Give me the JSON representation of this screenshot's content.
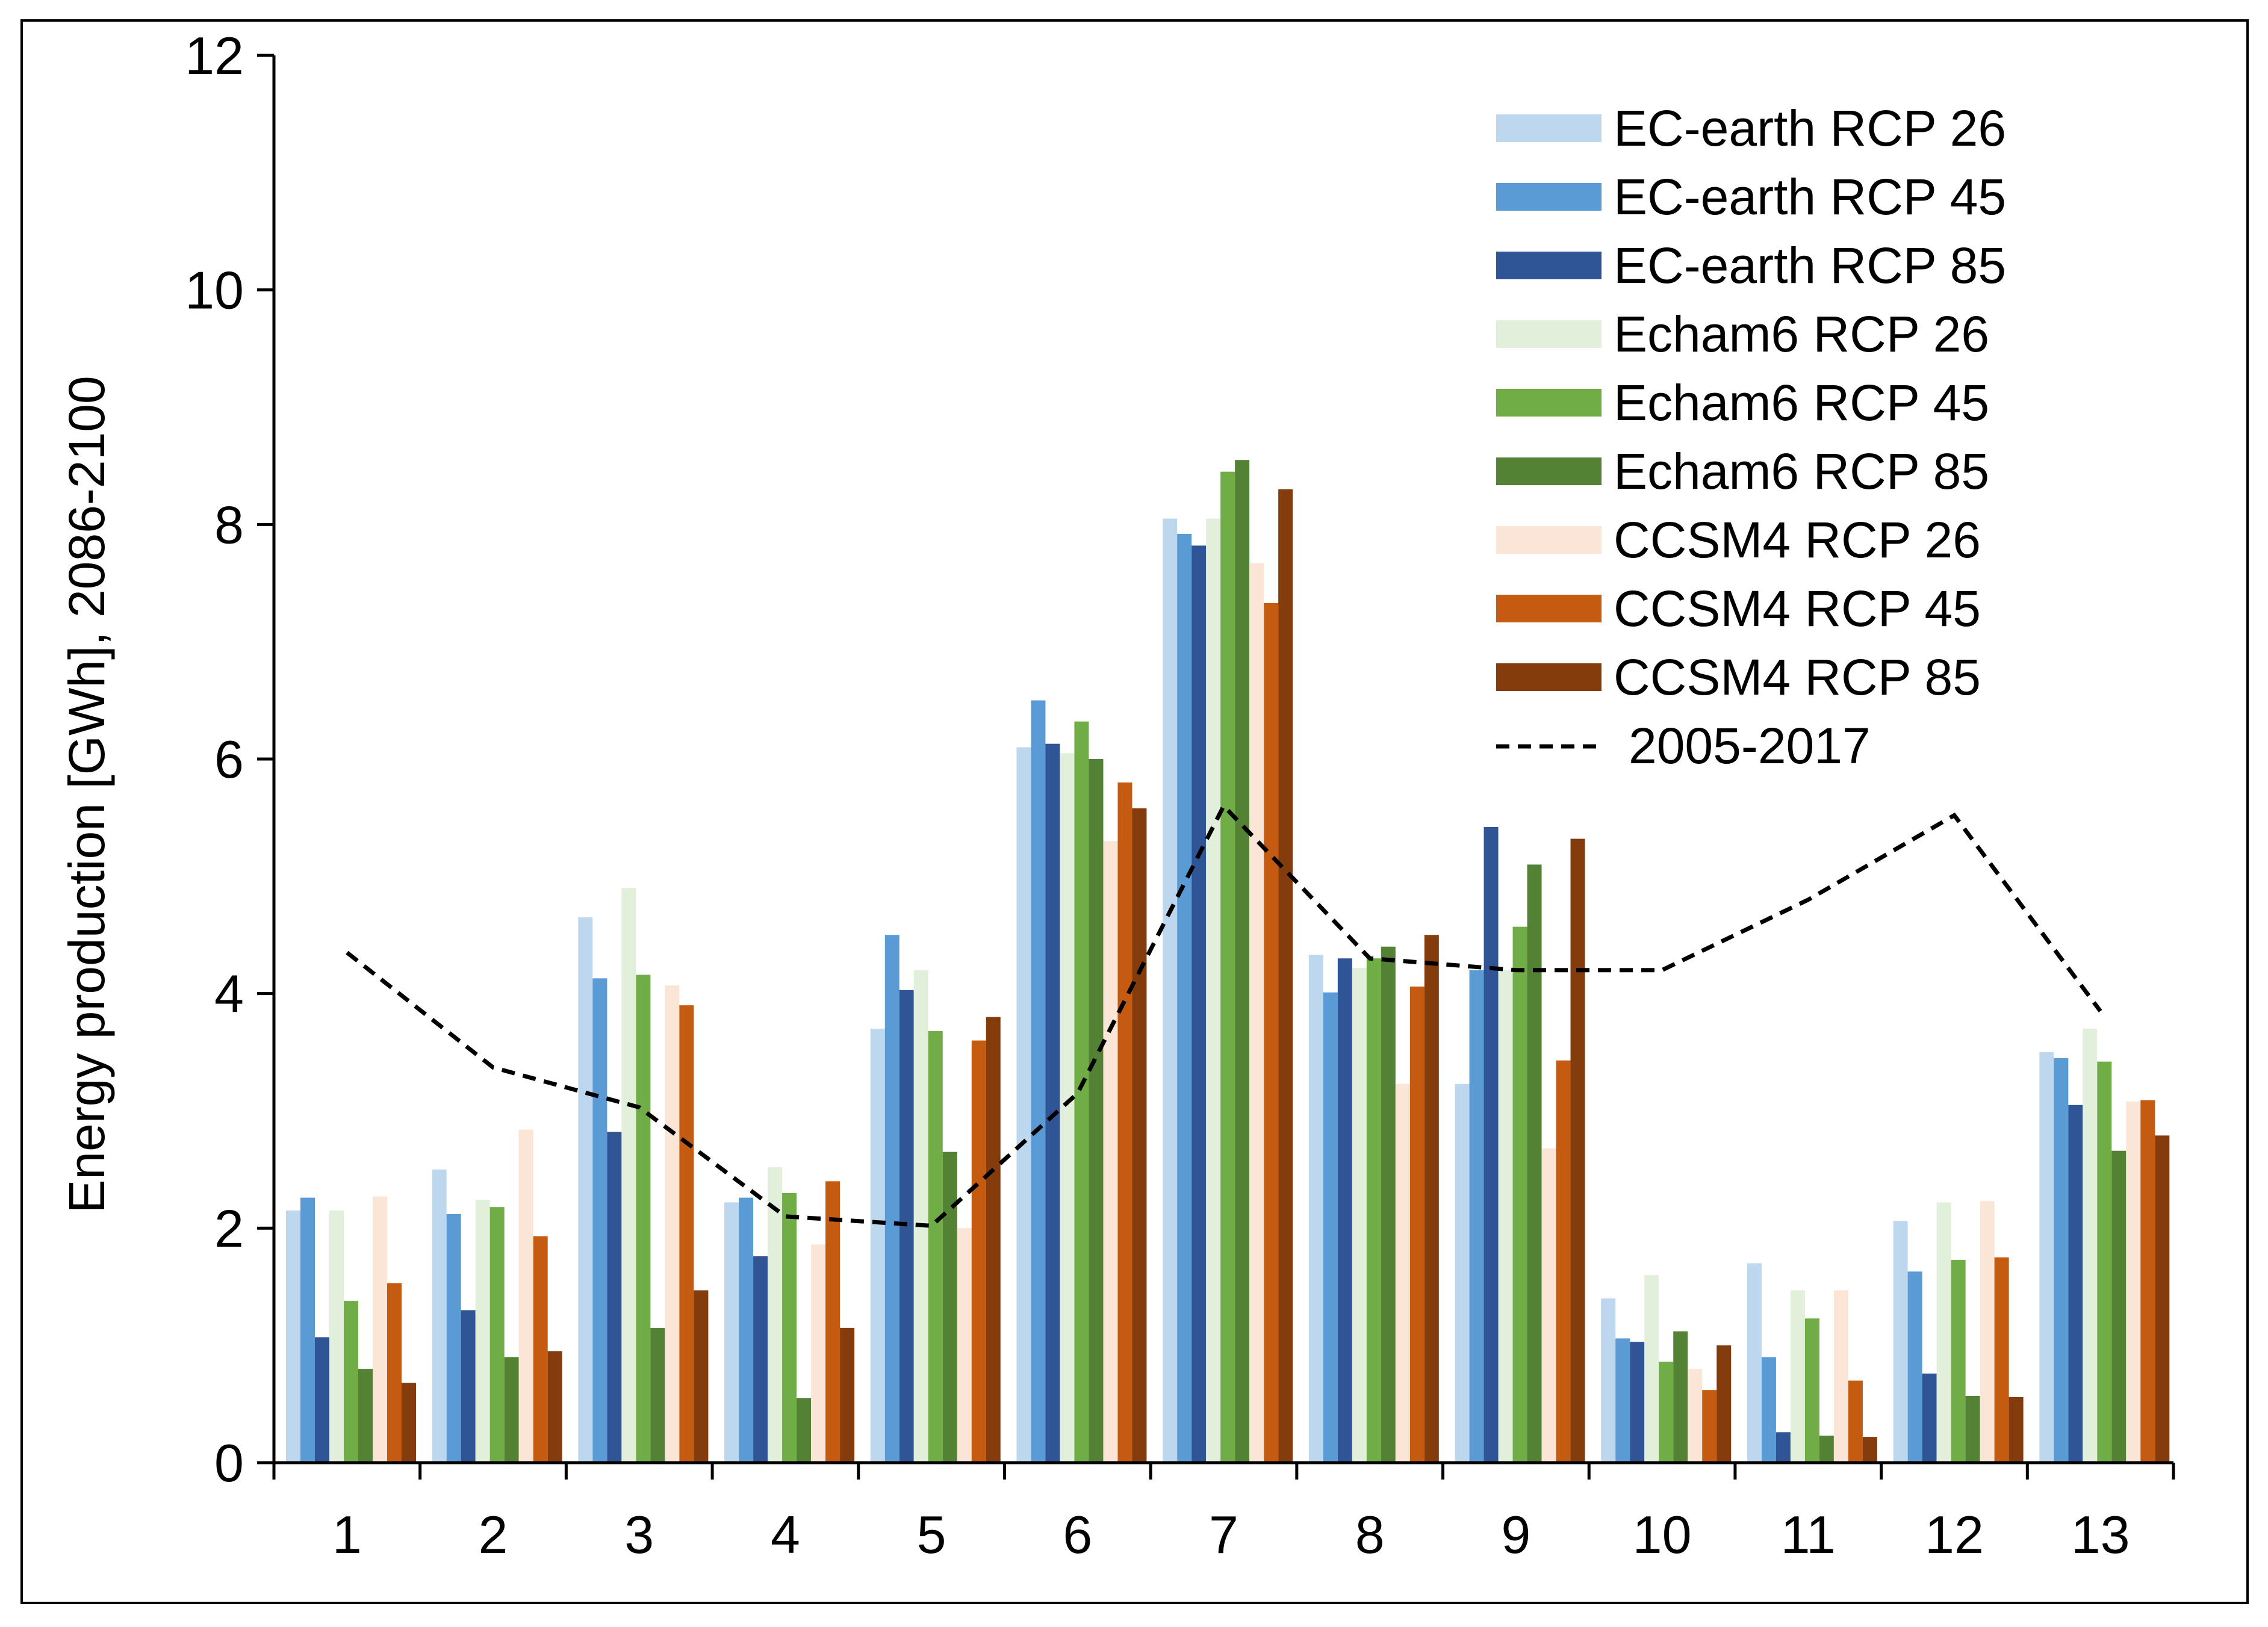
{
  "chart_data": {
    "type": "bar",
    "title": "",
    "xlabel": "",
    "ylabel": "Energy production [GWh], 2086-2100",
    "ylim": [
      0,
      12
    ],
    "yticks": [
      0,
      2,
      4,
      6,
      8,
      10,
      12
    ],
    "grid": false,
    "legend_position": "top-right",
    "categories": [
      "1",
      "2",
      "3",
      "4",
      "5",
      "6",
      "7",
      "8",
      "9",
      "10",
      "11",
      "12",
      "13"
    ],
    "series": [
      {
        "name": "EC-earth RCP 26",
        "color": "#bdd7ee",
        "values": [
          2.15,
          2.5,
          4.65,
          2.22,
          3.7,
          6.1,
          8.05,
          4.33,
          3.23,
          1.4,
          1.7,
          2.06,
          3.5
        ]
      },
      {
        "name": "EC-earth RCP 45",
        "color": "#5b9bd5",
        "values": [
          2.26,
          2.12,
          4.13,
          2.26,
          4.5,
          6.5,
          7.92,
          4.01,
          4.2,
          1.06,
          0.9,
          1.63,
          3.45
        ]
      },
      {
        "name": "EC-earth RCP 85",
        "color": "#2f5597",
        "values": [
          1.07,
          1.3,
          2.82,
          1.76,
          4.03,
          6.13,
          7.82,
          4.3,
          5.42,
          1.03,
          0.26,
          0.76,
          3.05
        ]
      },
      {
        "name": "Echam6 RCP 26",
        "color": "#e2efda",
        "values": [
          2.15,
          2.24,
          4.9,
          2.52,
          4.2,
          6.05,
          8.05,
          4.22,
          4.2,
          1.6,
          1.47,
          2.22,
          3.7
        ]
      },
      {
        "name": "Echam6 RCP 45",
        "color": "#70ad47",
        "values": [
          1.38,
          2.18,
          4.16,
          2.3,
          3.68,
          6.32,
          8.45,
          4.3,
          4.57,
          0.86,
          1.23,
          1.73,
          3.42
        ]
      },
      {
        "name": "Echam6 RCP 85",
        "color": "#548235",
        "values": [
          0.8,
          0.9,
          1.15,
          0.55,
          2.65,
          6.0,
          8.55,
          4.4,
          5.1,
          1.12,
          0.23,
          0.57,
          2.66
        ]
      },
      {
        "name": "CCSM4 RCP 26",
        "color": "#fbe5d6",
        "values": [
          2.27,
          2.84,
          4.07,
          1.86,
          2.0,
          5.3,
          7.67,
          3.23,
          2.68,
          0.8,
          1.47,
          2.23,
          3.08
        ]
      },
      {
        "name": "CCSM4 RCP 45",
        "color": "#c55a11",
        "values": [
          1.53,
          1.93,
          3.9,
          2.4,
          3.6,
          5.8,
          7.33,
          4.06,
          3.43,
          0.62,
          0.7,
          1.75,
          3.09
        ]
      },
      {
        "name": "CCSM4 RCP 85",
        "color": "#843c0c",
        "values": [
          0.68,
          0.95,
          1.47,
          1.15,
          3.8,
          5.58,
          8.3,
          4.5,
          5.32,
          1.0,
          0.22,
          0.56,
          2.79
        ]
      }
    ],
    "reference_line": {
      "name": "2005-2017",
      "color": "#000000",
      "style": "dashed",
      "values": [
        4.35,
        3.37,
        3.03,
        2.1,
        2.02,
        3.15,
        5.6,
        4.3,
        4.2,
        4.2,
        4.8,
        5.52,
        3.85
      ]
    }
  }
}
